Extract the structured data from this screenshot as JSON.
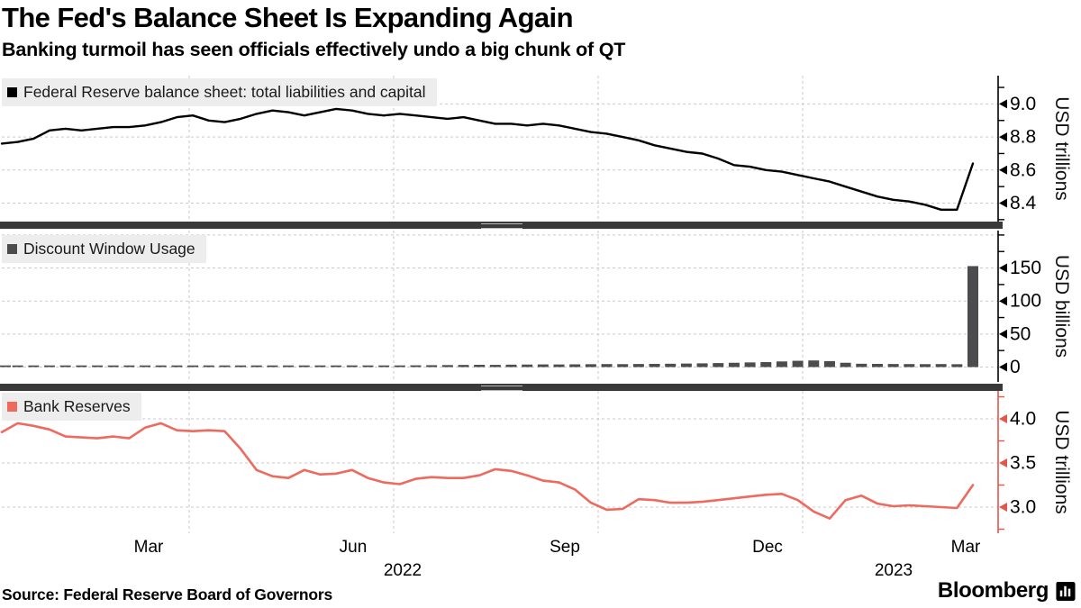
{
  "header": {
    "title": "The Fed's Balance Sheet Is Expanding Again",
    "subtitle": "Banking turmoil has seen officials effectively undo a big chunk of QT"
  },
  "footer": {
    "source": "Source: Federal Reserve Board of Governors",
    "brand": "Bloomberg"
  },
  "colors": {
    "balance_sheet_line": "#000000",
    "discount_window_bar": "#4c4c4e",
    "discount_window_swatch": "#4c4c4e",
    "bank_reserves_line": "#ee6a5e",
    "bank_reserves_axis": "#e2574b",
    "grid": "#c9c9c9",
    "legend_bg": "#ededed",
    "separator": "#3a3a3a",
    "axis_black": "#000000"
  },
  "x_axis": {
    "month_labels": [
      "Mar",
      "Jun",
      "Sep",
      "Dec",
      "Mar"
    ],
    "year_labels": [
      "2022",
      "2023"
    ]
  },
  "chart_data": [
    {
      "type": "line",
      "legend": "Federal Reserve balance sheet: total liabilities and capital",
      "unit": "USD trillions",
      "ylim": [
        8.29,
        9.16
      ],
      "ytick_values": [
        8.4,
        8.6,
        8.8,
        9.0
      ],
      "ytick_labels": [
        "8.4",
        "8.6",
        "8.8",
        "9.0"
      ],
      "minor_tick_values": [
        8.3,
        8.5,
        8.7,
        8.9,
        9.1
      ],
      "grid_values": [
        8.4,
        8.6,
        8.8,
        9.0
      ],
      "values": [
        8.76,
        8.77,
        8.79,
        8.84,
        8.85,
        8.84,
        8.85,
        8.86,
        8.86,
        8.87,
        8.89,
        8.92,
        8.93,
        8.9,
        8.89,
        8.91,
        8.94,
        8.96,
        8.95,
        8.93,
        8.95,
        8.97,
        8.96,
        8.94,
        8.93,
        8.94,
        8.93,
        8.92,
        8.91,
        8.92,
        8.9,
        8.88,
        8.88,
        8.87,
        8.88,
        8.87,
        8.85,
        8.83,
        8.82,
        8.8,
        8.78,
        8.75,
        8.73,
        8.71,
        8.7,
        8.67,
        8.63,
        8.62,
        8.6,
        8.59,
        8.57,
        8.55,
        8.53,
        8.5,
        8.47,
        8.44,
        8.42,
        8.41,
        8.39,
        8.36,
        8.36,
        8.64
      ]
    },
    {
      "type": "bar",
      "legend": "Discount Window Usage",
      "unit": "USD billions",
      "ylim": [
        -20,
        205
      ],
      "ytick_values": [
        0,
        50,
        100,
        150
      ],
      "ytick_labels": [
        "0",
        "50",
        "100",
        "150"
      ],
      "minor_tick_values": [
        25,
        75,
        125,
        175,
        200
      ],
      "grid_values": [
        0,
        50,
        100,
        150,
        200
      ],
      "values": [
        0.4,
        0.3,
        0.4,
        0.5,
        0.4,
        0.5,
        0.5,
        0.6,
        0.7,
        0.9,
        1.1,
        1.2,
        1.0,
        1.1,
        1.3,
        1.5,
        1.7,
        1.5,
        1.7,
        1.9,
        2.1,
        2.3,
        2.5,
        2.3,
        2.2,
        2.4,
        2.6,
        2.8,
        3.0,
        3.2,
        3.4,
        3.3,
        3.6,
        3.8,
        4.0,
        3.9,
        4.1,
        4.3,
        4.5,
        4.4,
        4.6,
        4.8,
        5.0,
        5.3,
        5.6,
        6.0,
        6.5,
        7.0,
        7.5,
        8.5,
        9.5,
        10.0,
        9.0,
        6.5,
        5.0,
        4.8,
        4.6,
        4.5,
        4.4,
        4.5,
        4.3,
        152.9
      ]
    },
    {
      "type": "line",
      "legend": "Bank Reserves",
      "unit": "USD trillions",
      "ylim": [
        2.7,
        4.3
      ],
      "ytick_values": [
        3.0,
        3.5,
        4.0
      ],
      "ytick_labels": [
        "3.0",
        "3.5",
        "4.0"
      ],
      "minor_tick_values": [
        2.75,
        3.25,
        3.75,
        4.25
      ],
      "grid_values": [
        3.0,
        3.5,
        4.0
      ],
      "values": [
        3.85,
        3.95,
        3.92,
        3.88,
        3.8,
        3.79,
        3.78,
        3.8,
        3.78,
        3.9,
        3.95,
        3.87,
        3.86,
        3.87,
        3.86,
        3.66,
        3.42,
        3.35,
        3.33,
        3.42,
        3.37,
        3.38,
        3.42,
        3.33,
        3.28,
        3.26,
        3.32,
        3.34,
        3.33,
        3.33,
        3.36,
        3.43,
        3.41,
        3.36,
        3.3,
        3.28,
        3.2,
        3.05,
        2.97,
        2.98,
        3.09,
        3.08,
        3.05,
        3.05,
        3.06,
        3.08,
        3.1,
        3.12,
        3.14,
        3.15,
        3.08,
        2.95,
        2.87,
        3.08,
        3.13,
        3.04,
        3.01,
        3.02,
        3.01,
        3.0,
        2.99,
        3.25
      ]
    }
  ]
}
